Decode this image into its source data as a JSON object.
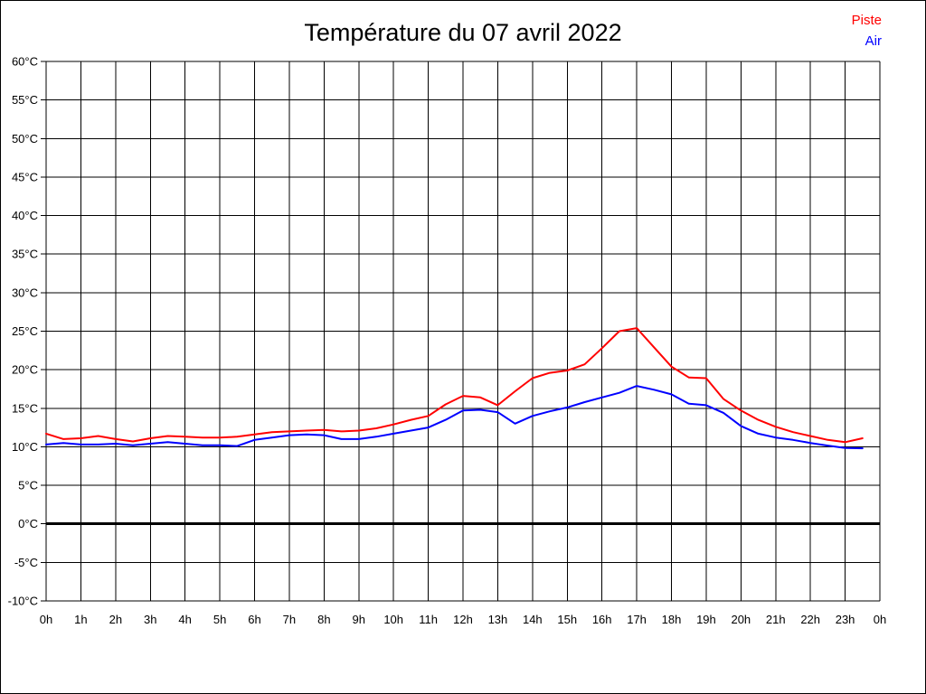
{
  "chart_data": {
    "type": "line",
    "title": "Température du 07 avril 2022",
    "xlabel": "",
    "ylabel": "",
    "xlim": [
      0,
      24
    ],
    "ylim": [
      -10,
      60
    ],
    "grid": true,
    "zero_line_emphasized": true,
    "legend_position": "top-right",
    "x_tick_labels": [
      "0h",
      "1h",
      "2h",
      "3h",
      "4h",
      "5h",
      "6h",
      "7h",
      "8h",
      "9h",
      "10h",
      "11h",
      "12h",
      "13h",
      "14h",
      "15h",
      "16h",
      "17h",
      "18h",
      "19h",
      "20h",
      "21h",
      "22h",
      "23h",
      "0h"
    ],
    "y_tick_labels": [
      "60°C",
      "55°C",
      "50°C",
      "45°C",
      "40°C",
      "35°C",
      "30°C",
      "25°C",
      "20°C",
      "15°C",
      "10°C",
      "5°C",
      "0°C",
      "-5°C",
      "-10°C"
    ],
    "x_hours": [
      0,
      0.5,
      1,
      1.5,
      2,
      2.5,
      3,
      3.5,
      4,
      4.5,
      5,
      5.5,
      6,
      6.5,
      7,
      7.5,
      8,
      8.5,
      9,
      9.5,
      10,
      10.5,
      11,
      11.5,
      12,
      12.5,
      13,
      13.5,
      14,
      14.5,
      15,
      15.5,
      16,
      16.5,
      17,
      17.5,
      18,
      18.5,
      19,
      19.5,
      20,
      20.5,
      21,
      21.5,
      22,
      22.5,
      23,
      23.5
    ],
    "series": [
      {
        "name": "Piste",
        "color": "#ff0000",
        "values": [
          11.7,
          11.0,
          11.1,
          11.4,
          11.0,
          10.7,
          11.1,
          11.4,
          11.3,
          11.2,
          11.2,
          11.3,
          11.6,
          11.9,
          12.0,
          12.1,
          12.2,
          12.0,
          12.1,
          12.4,
          12.9,
          13.5,
          14.0,
          15.5,
          16.6,
          16.4,
          15.4,
          17.2,
          18.9,
          19.6,
          19.9,
          20.7,
          22.8,
          25.0,
          25.4,
          22.9,
          20.4,
          19.0,
          18.9,
          16.2,
          14.7,
          13.5,
          12.6,
          11.9,
          11.4,
          10.9,
          10.6,
          11.1
        ]
      },
      {
        "name": "Air",
        "color": "#0000ff",
        "values": [
          10.3,
          10.5,
          10.3,
          10.3,
          10.4,
          10.2,
          10.4,
          10.6,
          10.4,
          10.2,
          10.2,
          10.1,
          10.9,
          11.2,
          11.5,
          11.6,
          11.5,
          11.0,
          11.0,
          11.3,
          11.7,
          12.1,
          12.5,
          13.5,
          14.7,
          14.8,
          14.5,
          13.0,
          14.0,
          14.6,
          15.1,
          15.8,
          16.4,
          17.0,
          17.9,
          17.4,
          16.8,
          15.6,
          15.4,
          14.4,
          12.7,
          11.7,
          11.2,
          10.9,
          10.5,
          10.15,
          9.85,
          9.8
        ]
      }
    ]
  }
}
